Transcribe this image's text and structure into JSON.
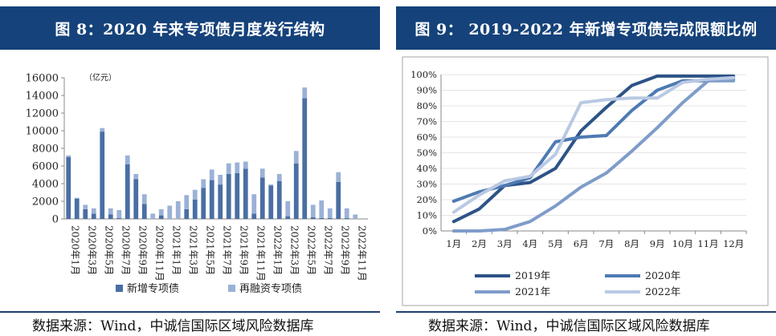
{
  "left_panel": {
    "title": "图 8：2020 年来专项债月度发行结构",
    "source": "数据来源：Wind，中诚信国际区域风险数据库"
  },
  "right_panel": {
    "title": "图 9： 2019-2022 年新增专项债完成限额比例",
    "source": "数据来源：Wind，中诚信国际区域风险数据库"
  },
  "colors": {
    "title_bg": "#15427a",
    "new_bond": "#4a6ea4",
    "refi_bond": "#9bb1d6",
    "y2019": "#2d5387",
    "y2020": "#4e7ab3",
    "y2021": "#7f9cc9",
    "y2022": "#b9c9e3"
  },
  "chart_data": [
    {
      "type": "bar",
      "stacked": true,
      "unit_label": "（亿元）",
      "ylim": [
        0,
        16000
      ],
      "yticks": [
        "0",
        "2000",
        "4000",
        "6000",
        "8000",
        "10000",
        "12000",
        "14000",
        "16000"
      ],
      "xtick_labels": [
        "2020年1月",
        "2020年3月",
        "2020年5月",
        "2020年7月",
        "2020年9月",
        "2020年11月",
        "2021年1月",
        "2021年3月",
        "2021年5月",
        "2021年7月",
        "2021年9月",
        "2021年11月",
        "2022年1月",
        "2022年3月",
        "2022年5月",
        "2022年7月",
        "2022年9月",
        "2022年11月"
      ],
      "series": [
        {
          "name": "新增专项债",
          "values": [
            7000,
            2300,
            1100,
            600,
            9900,
            500,
            100,
            6200,
            4500,
            1700,
            0,
            400,
            0,
            0,
            1100,
            2200,
            3500,
            4400,
            3900,
            5100,
            5200,
            5700,
            600,
            4700,
            3800,
            4300,
            300,
            6300,
            13700,
            200,
            100,
            100,
            4200,
            100,
            0,
            0
          ]
        },
        {
          "name": "再融资专项债",
          "values": [
            200,
            100,
            500,
            600,
            400,
            700,
            900,
            1000,
            600,
            1100,
            600,
            700,
            1500,
            2000,
            1600,
            1100,
            1000,
            1200,
            1100,
            1200,
            1200,
            800,
            2200,
            1000,
            100,
            800,
            1700,
            1400,
            1200,
            1400,
            2000,
            1100,
            1100,
            1100,
            500,
            0
          ]
        }
      ]
    },
    {
      "type": "line",
      "ylim": [
        0,
        100
      ],
      "yticks": [
        "0%",
        "10%",
        "20%",
        "30%",
        "40%",
        "50%",
        "60%",
        "70%",
        "80%",
        "90%",
        "100%"
      ],
      "categories": [
        "1月",
        "2月",
        "3月",
        "4月",
        "5月",
        "6月",
        "7月",
        "8月",
        "9月",
        "10月",
        "11月",
        "12月"
      ],
      "series": [
        {
          "name": "2019年",
          "values": [
            6,
            14,
            29,
            31,
            40,
            64,
            79,
            93,
            99,
            99,
            99,
            99
          ]
        },
        {
          "name": "2020年",
          "values": [
            19,
            25,
            29,
            34,
            57,
            60,
            61,
            77,
            90,
            96,
            96,
            97
          ]
        },
        {
          "name": "2021年",
          "values": [
            0,
            0,
            1,
            6,
            16,
            28,
            37,
            51,
            66,
            82,
            96,
            96
          ]
        },
        {
          "name": "2022年",
          "values": [
            12,
            23,
            32,
            35,
            49,
            82,
            84,
            85,
            85,
            95,
            97,
            98
          ]
        }
      ]
    }
  ]
}
